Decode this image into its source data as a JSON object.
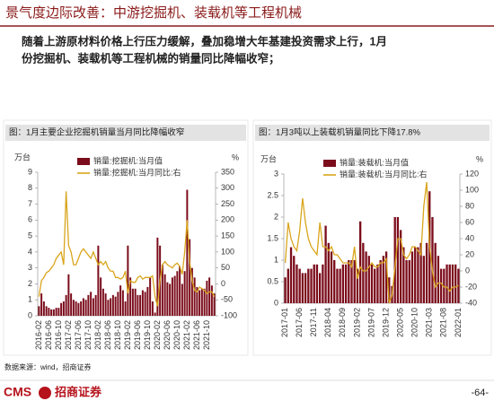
{
  "page_title": "景气度边际改善：中游挖掘机、装载机等工程机械",
  "body": [
    "随着上游原材料价格上行压力缓解，叠加稳增大年基建投资需求上行，1月",
    "份挖掘机、装载机等工程机械的销量同比降幅收窄；"
  ],
  "source": "数据来源：wind，招商证券",
  "logo": {
    "brand": "CMS",
    "name": "招商证券"
  },
  "page_number": "-64-",
  "chart_data": [
    {
      "type": "bar",
      "title": "图：1月主要企业挖掘机销量当月同比降幅收窄",
      "y_unit": "万台",
      "y2_unit": "%",
      "legend": "top",
      "categories": [
        "2016-02",
        null,
        null,
        null,
        "2016-06",
        null,
        null,
        null,
        "2016-10",
        null,
        null,
        null,
        "2017-02",
        null,
        null,
        null,
        "2017-06",
        null,
        null,
        null,
        "2017-10",
        null,
        null,
        null,
        "2018-02",
        null,
        null,
        null,
        "2018-06",
        null,
        null,
        null,
        "2018-10",
        null,
        null,
        null,
        "2019-02",
        null,
        null,
        null,
        "2019-06",
        null,
        null,
        null,
        "2019-10",
        null,
        null,
        null,
        "2020-02",
        null,
        null,
        null,
        "2020-06",
        null,
        null,
        null,
        "2020-10",
        null,
        null,
        null,
        "2021-02",
        null,
        null,
        null,
        "2021-06",
        null,
        null,
        null,
        "2021-10",
        null,
        null,
        null
      ],
      "series": [
        {
          "name": "销量:挖掘机:当月值",
          "color": "#7b0c1b",
          "values": [
            0.6,
            1.4,
            0.9,
            0.6,
            0.5,
            0.4,
            0.4,
            0.5,
            0.5,
            0.8,
            0.9,
            1.3,
            2.6,
            1.4,
            1.0,
            0.9,
            0.8,
            0.9,
            1.1,
            1.0,
            1.3,
            1.5,
            1.1,
            1.3,
            4.4,
            2.4,
            1.7,
            1.4,
            1.0,
            1.1,
            1.3,
            1.2,
            1.5,
            1.9,
            1.6,
            0.9,
            4.4,
            2.4,
            1.7,
            1.7,
            1.3,
            1.3,
            1.6,
            1.5,
            1.8,
            2.4,
            0.9,
            0.2,
            4.9,
            4.4,
            3.2,
            2.6,
            2.1,
            2.0,
            2.4,
            2.5,
            2.8,
            3.1,
            2.0,
            2.8,
            7.9,
            4.8,
            3.0,
            2.4,
            1.8,
            1.6,
            1.7,
            1.7,
            2.2,
            2.4,
            1.9,
            1.4
          ]
        },
        {
          "name": "销量:挖掘机:当月同比:右",
          "color": "#d9a51c",
          "axis": "y2",
          "values": [
            -40,
            10,
            20,
            35,
            40,
            50,
            60,
            80,
            90,
            100,
            60,
            290,
            120,
            100,
            60,
            60,
            80,
            100,
            110,
            100,
            90,
            80,
            100,
            80,
            60,
            70,
            60,
            70,
            50,
            40,
            40,
            20,
            20,
            15,
            20,
            40,
            -30,
            10,
            5,
            5,
            20,
            25,
            15,
            20,
            20,
            20,
            25,
            -40,
            -70,
            10,
            60,
            70,
            60,
            55,
            50,
            60,
            65,
            55,
            30,
            100,
            200,
            70,
            10,
            -20,
            -25,
            -10,
            -15,
            -20,
            -30,
            -25,
            -25,
            -40
          ]
        }
      ],
      "ylim": [
        0,
        9
      ],
      "yticks": [
        0,
        1,
        2,
        3,
        4,
        5,
        6,
        7,
        8,
        9
      ],
      "y2lim": [
        -100,
        350
      ],
      "y2ticks": [
        -100,
        -50,
        0,
        50,
        100,
        150,
        200,
        250,
        300,
        350
      ]
    },
    {
      "type": "bar",
      "title": "图：1月3吨以上装载机销量同比下降17.8%",
      "y_unit": "万台",
      "y2_unit": "%",
      "legend": "top",
      "categories": [
        "2017-01",
        null,
        null,
        null,
        null,
        "2017-06",
        null,
        null,
        null,
        null,
        "2017-11",
        null,
        null,
        null,
        null,
        "2018-04",
        null,
        null,
        null,
        null,
        "2018-09",
        null,
        null,
        null,
        null,
        "2019-02",
        null,
        null,
        null,
        null,
        "2019-07",
        null,
        null,
        null,
        null,
        "2019-12",
        null,
        null,
        null,
        null,
        "2020-05",
        null,
        null,
        null,
        null,
        "2020-10",
        null,
        null,
        null,
        null,
        "2021-03",
        null,
        null,
        null,
        null,
        "2021-08",
        null,
        null,
        null,
        null,
        "2022-01"
      ],
      "series": [
        {
          "name": "销量:装载机:当月值",
          "color": "#7b0c1b",
          "values": [
            0.6,
            0.8,
            1.3,
            1.1,
            0.9,
            0.8,
            0.7,
            0.7,
            0.8,
            0.8,
            0.9,
            0.9,
            0.7,
            0.9,
            1.8,
            1.4,
            1.2,
            1.0,
            0.8,
            0.8,
            0.9,
            0.9,
            1.0,
            1.0,
            1.0,
            0.8,
            1.9,
            1.4,
            1.2,
            1.1,
            0.9,
            0.8,
            0.9,
            1.0,
            1.1,
            1.2,
            0.6,
            0.4,
            2.0,
            2.0,
            1.7,
            1.3,
            1.0,
            1.0,
            1.2,
            1.3,
            1.3,
            1.4,
            1.1,
            1.4,
            2.6,
            2.0,
            1.4,
            1.1,
            0.8,
            0.8,
            0.9,
            0.9,
            0.9,
            0.9,
            0.8
          ]
        },
        {
          "name": "销量:装载机:当月同比:右",
          "color": "#d9a51c",
          "axis": "y2",
          "values": [
            10,
            60,
            40,
            30,
            25,
            50,
            90,
            60,
            40,
            30,
            25,
            20,
            60,
            30,
            30,
            25,
            30,
            20,
            20,
            15,
            10,
            10,
            10,
            5,
            30,
            -10,
            5,
            0,
            0,
            5,
            10,
            5,
            5,
            10,
            10,
            15,
            -40,
            -30,
            5,
            40,
            40,
            20,
            15,
            20,
            30,
            30,
            25,
            20,
            80,
            110,
            30,
            0,
            -20,
            -15,
            -15,
            -20,
            -20,
            -25,
            -20,
            -20,
            -17.8
          ]
        }
      ],
      "ylim": [
        0,
        3
      ],
      "yticks": [
        0,
        0.5,
        1,
        1.5,
        2,
        2.5,
        3
      ],
      "y2lim": [
        -40,
        120
      ],
      "y2ticks": [
        -40,
        -20,
        0,
        20,
        40,
        60,
        80,
        100,
        120
      ]
    }
  ]
}
